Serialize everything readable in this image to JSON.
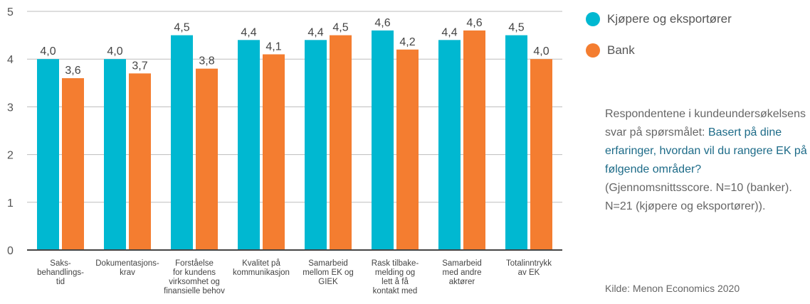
{
  "chart_data": {
    "type": "bar",
    "categories": [
      [
        "Saks-",
        "behandlings-",
        "tid"
      ],
      [
        "Dokumentasjons-",
        "krav"
      ],
      [
        "Forståelse",
        "for kundens",
        "virksomhet og",
        "finansielle behov"
      ],
      [
        "Kvalitet på",
        "kommunikasjon"
      ],
      [
        "Samarbeid",
        "mellom EK og",
        "GIEK"
      ],
      [
        "Rask tilbake-",
        "melding og",
        "lett å få",
        "kontakt med"
      ],
      [
        "Samarbeid",
        "med andre",
        "aktører"
      ],
      [
        "Totalinntrykk",
        "av EK"
      ]
    ],
    "series": [
      {
        "name": "Kjøpere og eksportører",
        "color": "#00b8d1",
        "values": [
          4.0,
          4.0,
          4.5,
          4.4,
          4.4,
          4.6,
          4.4,
          4.5
        ],
        "labels": [
          "4,0",
          "4,0",
          "4,5",
          "4,4",
          "4,4",
          "4,6",
          "4,4",
          "4,5"
        ]
      },
      {
        "name": "Bank",
        "color": "#f47d30",
        "values": [
          3.6,
          3.7,
          3.8,
          4.1,
          4.5,
          4.2,
          4.6,
          4.0
        ],
        "labels": [
          "3,6",
          "3,7",
          "3,8",
          "4,1",
          "4,5",
          "4,2",
          "4,6",
          "4,0"
        ]
      }
    ],
    "ylim": [
      0,
      5
    ],
    "yticks": [
      "0",
      "1",
      "2",
      "3",
      "4",
      "5"
    ],
    "grid": true,
    "legend": "right"
  },
  "note": {
    "intro": "Respondentene i kundeundersøkelsens svar på spørsmålet: ",
    "question": "Basert på dine erfaringer, hvordan vil du rangere EK på følgende områder?",
    "outro": " (Gjennomsnittsscore. N=10 (banker). N=21 (kjøpere og eksportører))."
  },
  "source": "Kilde: Menon Economics 2020"
}
